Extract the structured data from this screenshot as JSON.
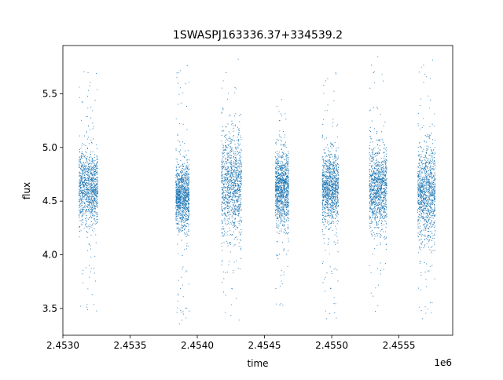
{
  "chart_data": {
    "type": "scatter",
    "title": "1SWASPJ163336.37+334539.2",
    "xlabel": "time",
    "ylabel": "flux",
    "x_offset_label": "1e6",
    "xlim": [
      2.453,
      2.4559
    ],
    "ylim": [
      3.25,
      5.95
    ],
    "x_ticks": [
      2.453,
      2.4535,
      2.454,
      2.4545,
      2.455,
      2.4555
    ],
    "x_tick_labels": [
      "2.4530",
      "2.4535",
      "2.4540",
      "2.4545",
      "2.4550",
      "2.4555"
    ],
    "y_ticks": [
      3.5,
      4.0,
      4.5,
      5.0,
      5.5
    ],
    "y_tick_labels": [
      "3.5",
      "4.0",
      "4.5",
      "5.0",
      "5.5"
    ],
    "grid": false,
    "marker_color": "#1f77b4",
    "series": [
      {
        "values": [
          {
            "x_start": 2.45312,
            "x_end": 2.45326,
            "y_center": 4.62,
            "core_spread": 0.18,
            "y_min": 3.4,
            "y_max": 5.78
          },
          {
            "x_start": 2.45384,
            "x_end": 2.45394,
            "y_center": 4.55,
            "core_spread": 0.15,
            "y_min": 3.35,
            "y_max": 5.8
          },
          {
            "x_start": 2.45418,
            "x_end": 2.45433,
            "y_center": 4.65,
            "core_spread": 0.24,
            "y_min": 3.38,
            "y_max": 5.85
          },
          {
            "x_start": 2.45458,
            "x_end": 2.45468,
            "y_center": 4.62,
            "core_spread": 0.17,
            "y_min": 3.45,
            "y_max": 5.45
          },
          {
            "x_start": 2.45493,
            "x_end": 2.45505,
            "y_center": 4.62,
            "core_spread": 0.17,
            "y_min": 3.4,
            "y_max": 5.72
          },
          {
            "x_start": 2.45528,
            "x_end": 2.45541,
            "y_center": 4.62,
            "core_spread": 0.19,
            "y_min": 3.37,
            "y_max": 5.85
          },
          {
            "x_start": 2.45564,
            "x_end": 2.45577,
            "y_center": 4.58,
            "core_spread": 0.22,
            "y_min": 3.4,
            "y_max": 5.85
          }
        ]
      }
    ]
  }
}
